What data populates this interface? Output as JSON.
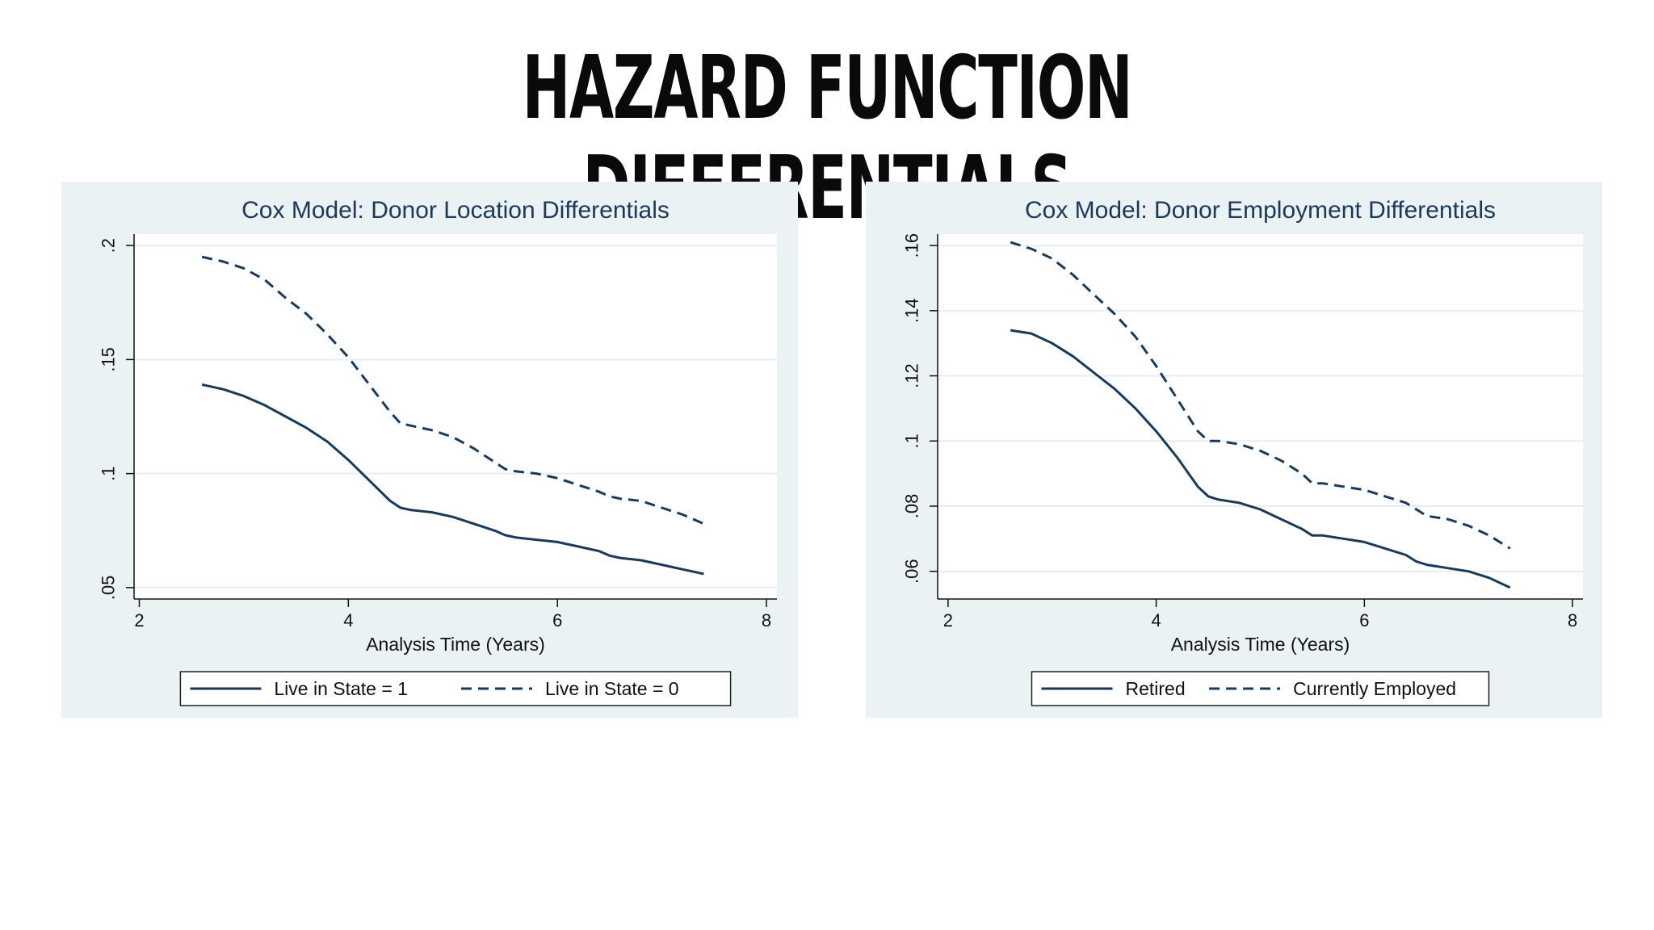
{
  "page": {
    "title": "HAZARD FUNCTION DIFFERENTIALS"
  },
  "colors": {
    "line": "#1a3a5a",
    "panel_bg": "#eaf2f3",
    "plot_bg": "#ffffff",
    "grid": "#e8eef0"
  },
  "chart_data": [
    {
      "type": "line",
      "title": "Cox Model: Donor Location Differentials",
      "xlabel": "Analysis Time (Years)",
      "ylabel": "",
      "xlim": [
        1.95,
        8.1
      ],
      "ylim": [
        0.045,
        0.205
      ],
      "xticks": [
        2,
        4,
        6,
        8
      ],
      "xtick_labels": [
        "2",
        "4",
        "6",
        "8"
      ],
      "yticks": [
        0.05,
        0.1,
        0.15,
        0.2
      ],
      "ytick_labels": [
        ".05",
        ".1",
        ".15",
        ".2"
      ],
      "grid": true,
      "legend": "bottom",
      "series": [
        {
          "name": "Live in State = 1",
          "style": "solid",
          "x": [
            2.6,
            2.8,
            3.0,
            3.2,
            3.4,
            3.6,
            3.8,
            4.0,
            4.2,
            4.4,
            4.5,
            4.6,
            4.8,
            5.0,
            5.2,
            5.4,
            5.5,
            5.6,
            5.8,
            6.0,
            6.2,
            6.4,
            6.5,
            6.6,
            6.8,
            7.0,
            7.2,
            7.4
          ],
          "y": [
            0.139,
            0.137,
            0.134,
            0.13,
            0.125,
            0.12,
            0.114,
            0.106,
            0.097,
            0.088,
            0.085,
            0.084,
            0.083,
            0.081,
            0.078,
            0.075,
            0.073,
            0.072,
            0.071,
            0.07,
            0.068,
            0.066,
            0.064,
            0.063,
            0.062,
            0.06,
            0.058,
            0.056
          ]
        },
        {
          "name": "Live in State = 0",
          "style": "dashed",
          "x": [
            2.6,
            2.8,
            3.0,
            3.2,
            3.4,
            3.6,
            3.8,
            4.0,
            4.2,
            4.4,
            4.5,
            4.6,
            4.8,
            5.0,
            5.2,
            5.4,
            5.5,
            5.6,
            5.8,
            6.0,
            6.2,
            6.4,
            6.5,
            6.6,
            6.8,
            7.0,
            7.2,
            7.4
          ],
          "y": [
            0.195,
            0.193,
            0.19,
            0.185,
            0.177,
            0.17,
            0.161,
            0.151,
            0.139,
            0.127,
            0.122,
            0.121,
            0.119,
            0.116,
            0.111,
            0.105,
            0.102,
            0.101,
            0.1,
            0.098,
            0.095,
            0.092,
            0.09,
            0.089,
            0.088,
            0.085,
            0.082,
            0.078
          ]
        }
      ]
    },
    {
      "type": "line",
      "title": "Cox Model: Donor Employment Differentials",
      "xlabel": "Analysis Time (Years)",
      "ylabel": "",
      "xlim": [
        1.9,
        8.1
      ],
      "ylim": [
        0.0515,
        0.1635
      ],
      "xticks": [
        2,
        4,
        6,
        8
      ],
      "xtick_labels": [
        "2",
        "4",
        "6",
        "8"
      ],
      "yticks": [
        0.06,
        0.08,
        0.1,
        0.12,
        0.14,
        0.16
      ],
      "ytick_labels": [
        ".06",
        ".08",
        ".1",
        ".12",
        ".14",
        ".16"
      ],
      "grid": true,
      "legend": "bottom",
      "series": [
        {
          "name": "Retired",
          "style": "solid",
          "x": [
            2.6,
            2.8,
            3.0,
            3.2,
            3.4,
            3.6,
            3.8,
            4.0,
            4.2,
            4.4,
            4.5,
            4.6,
            4.8,
            5.0,
            5.2,
            5.4,
            5.5,
            5.6,
            5.8,
            6.0,
            6.2,
            6.4,
            6.5,
            6.6,
            6.8,
            7.0,
            7.2,
            7.4
          ],
          "y": [
            0.134,
            0.133,
            0.13,
            0.126,
            0.121,
            0.116,
            0.11,
            0.103,
            0.095,
            0.086,
            0.083,
            0.082,
            0.081,
            0.079,
            0.076,
            0.073,
            0.071,
            0.071,
            0.07,
            0.069,
            0.067,
            0.065,
            0.063,
            0.062,
            0.061,
            0.06,
            0.058,
            0.055
          ]
        },
        {
          "name": "Currently Employed",
          "style": "dashed",
          "x": [
            2.6,
            2.8,
            3.0,
            3.2,
            3.4,
            3.6,
            3.8,
            4.0,
            4.2,
            4.4,
            4.5,
            4.6,
            4.8,
            5.0,
            5.2,
            5.4,
            5.5,
            5.6,
            5.8,
            6.0,
            6.2,
            6.4,
            6.5,
            6.6,
            6.8,
            7.0,
            7.2,
            7.4
          ],
          "y": [
            0.161,
            0.159,
            0.156,
            0.151,
            0.145,
            0.139,
            0.132,
            0.123,
            0.113,
            0.103,
            0.1,
            0.1,
            0.099,
            0.097,
            0.094,
            0.09,
            0.087,
            0.087,
            0.086,
            0.085,
            0.083,
            0.081,
            0.079,
            0.077,
            0.076,
            0.074,
            0.071,
            0.067
          ]
        }
      ]
    }
  ]
}
